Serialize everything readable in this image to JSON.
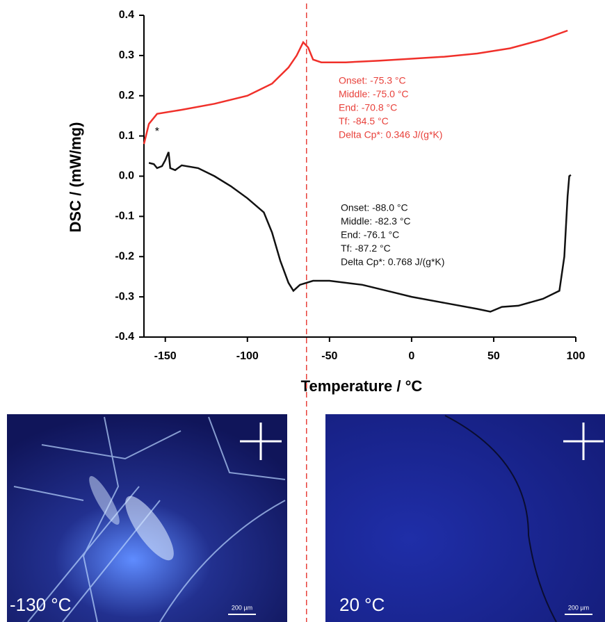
{
  "chart_data": {
    "type": "line",
    "xlabel": "Temperature / °C",
    "ylabel": "DSC / (mW/mg)",
    "xlim": [
      -163,
      100
    ],
    "ylim": [
      -0.4,
      0.4
    ],
    "xticks": [
      -150,
      -100,
      -50,
      0,
      50,
      100
    ],
    "yticks": [
      0.4,
      0.3,
      0.2,
      0.1,
      {
        "value": 0,
        "label": "0.0"
      },
      -0.1,
      -0.2,
      -0.3,
      -0.4
    ],
    "grid": false,
    "marker_x": -64,
    "marker_color": "#e8403a",
    "series": [
      {
        "color": "#f0302a",
        "x": [
          -163,
          -160,
          -155,
          -140,
          -120,
          -100,
          -85,
          -75,
          -70,
          -66,
          -63,
          -60,
          -55,
          -40,
          -20,
          0,
          20,
          40,
          60,
          80,
          95
        ],
        "values": [
          0.08,
          0.13,
          0.155,
          0.165,
          0.18,
          0.2,
          0.23,
          0.27,
          0.3,
          0.333,
          0.32,
          0.29,
          0.283,
          0.283,
          0.287,
          0.292,
          0.297,
          0.305,
          0.318,
          0.34,
          0.362
        ]
      },
      {
        "color": "#111111",
        "x": [
          -160,
          -157,
          -155,
          -152,
          -150,
          -148,
          -147,
          -144,
          -140,
          -130,
          -120,
          -110,
          -100,
          -90,
          -85,
          -80,
          -75,
          -72,
          -68,
          -60,
          -50,
          -30,
          -10,
          0,
          20,
          40,
          48,
          55,
          65,
          80,
          90,
          93,
          95,
          96,
          97
        ],
        "values": [
          0.033,
          0.03,
          0.02,
          0.025,
          0.04,
          0.06,
          0.02,
          0.015,
          0.027,
          0.02,
          0.0,
          -0.025,
          -0.055,
          -0.09,
          -0.14,
          -0.21,
          -0.265,
          -0.285,
          -0.27,
          -0.26,
          -0.26,
          -0.27,
          -0.29,
          -0.3,
          -0.315,
          -0.33,
          -0.337,
          -0.325,
          -0.322,
          -0.305,
          -0.285,
          -0.2,
          -0.05,
          0.0,
          0.003
        ]
      }
    ],
    "peak_marker": "*",
    "annotations": [
      {
        "color": "#e8403a",
        "lines": [
          "Onset: -75.3 °C",
          "Middle: -75.0 °C",
          "End: -70.8 °C",
          "Tf: -84.5 °C",
          "Delta Cp*: 0.346 J/(g*K)"
        ]
      },
      {
        "color": "#111111",
        "lines": [
          "Onset: -88.0 °C",
          "Middle: -82.3 °C",
          "End: -76.1 °C",
          "Tf: -87.2 °C",
          "Delta Cp*: 0.768 J/(g*K)"
        ]
      }
    ]
  },
  "micrographs": [
    {
      "label": "-130 °C",
      "scale_bar": "200 µm"
    },
    {
      "label": "20 °C",
      "scale_bar": "200 µm"
    }
  ]
}
